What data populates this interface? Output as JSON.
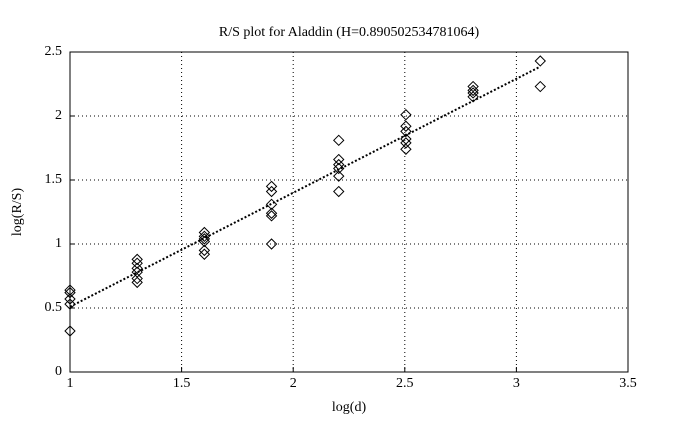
{
  "chart_data": {
    "type": "scatter",
    "title": "R/S plot for Aladdin (H=0.890502534781064)",
    "x_label": "log(d)",
    "y_label": "log(R/S)",
    "xlim": [
      1,
      3.5
    ],
    "xticks": [
      1,
      1.5,
      2,
      2.5,
      3,
      3.5
    ],
    "ylim": [
      0,
      2.5
    ],
    "yticks": [
      0,
      0.5,
      1,
      1.5,
      2,
      2.5
    ],
    "grid": true,
    "series": [
      {
        "type": "scatter",
        "color": "#000000",
        "x": [
          1,
          1,
          1,
          1,
          1,
          1.301,
          1.301,
          1.301,
          1.301,
          1.301,
          1.301,
          1.602,
          1.602,
          1.602,
          1.602,
          1.602,
          1.602,
          1.903,
          1.903,
          1.903,
          1.903,
          1.903,
          1.903,
          2.204,
          2.204,
          2.204,
          2.204,
          2.204,
          2.204,
          2.505,
          2.505,
          2.505,
          2.505,
          2.505,
          2.505,
          2.806,
          2.806,
          2.806,
          2.806,
          3.107,
          3.107
        ],
        "values": [
          0.64,
          0.62,
          0.57,
          0.53,
          0.32,
          0.88,
          0.85,
          0.81,
          0.78,
          0.73,
          0.7,
          1.09,
          1.06,
          1.04,
          1.02,
          0.95,
          0.92,
          1.45,
          1.41,
          1.31,
          1.24,
          1.22,
          1.0,
          1.81,
          1.66,
          1.62,
          1.59,
          1.53,
          1.41,
          2.01,
          1.92,
          1.88,
          1.82,
          1.79,
          1.74,
          2.23,
          2.2,
          2.18,
          2.15,
          2.43,
          2.23
        ]
      },
      {
        "type": "line",
        "color": "#000000",
        "x": [
          1,
          3.107
        ],
        "values": [
          0.51,
          2.386
        ]
      }
    ]
  }
}
